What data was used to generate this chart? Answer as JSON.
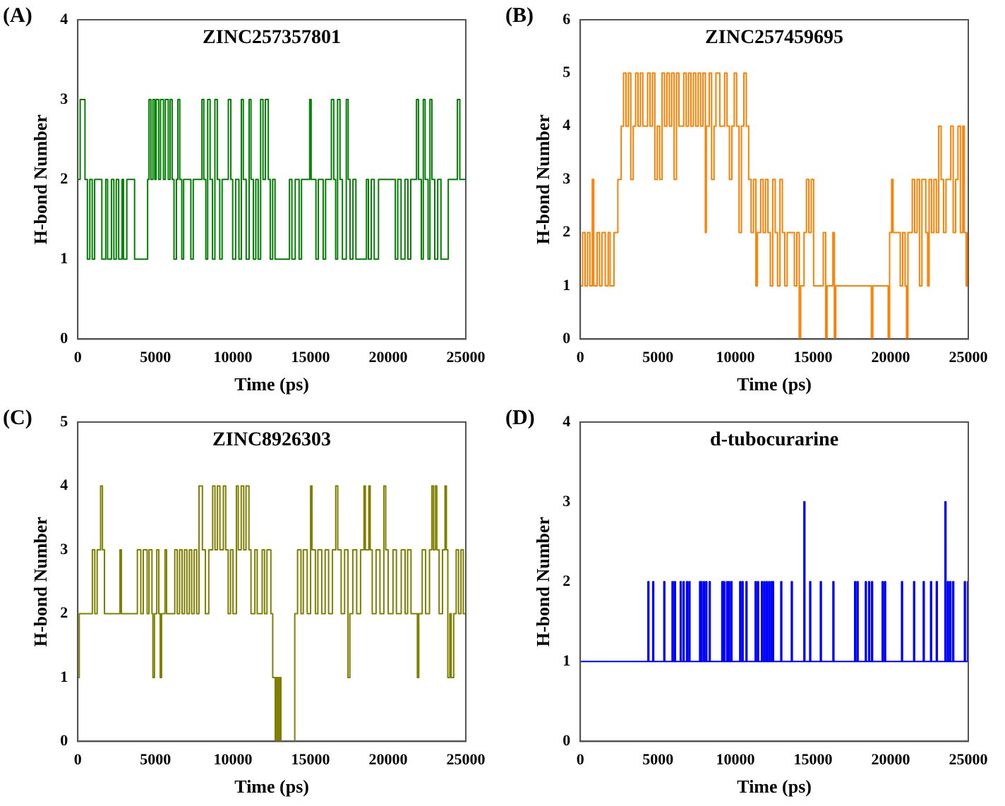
{
  "chart_data": [
    {
      "type": "step",
      "title": "ZINC257357801",
      "annotations": [
        "(A)"
      ],
      "xlabel": "Time (ps)",
      "ylabel": "H-bond Number",
      "xlim": [
        0,
        25000
      ],
      "xticks": [
        0,
        5000,
        10000,
        15000,
        20000,
        25000
      ],
      "ylim": [
        0,
        4
      ],
      "yticks": [
        0,
        1,
        2,
        3,
        4
      ],
      "grid": false,
      "x": [
        0,
        155,
        465,
        620,
        775,
        930,
        1085,
        1550,
        1800,
        1920,
        2170,
        2325,
        2480,
        2635,
        2850,
        2945,
        3160,
        3660,
        4500,
        4590,
        4710,
        4840,
        4960,
        5050,
        5210,
        5330,
        5520,
        5640,
        5830,
        5950,
        6080,
        6200,
        6355,
        6450,
        6570,
        6700,
        6820,
        7285,
        7440,
        8000,
        8120,
        8250,
        8370,
        8525,
        8680,
        8835,
        8990,
        9145,
        9300,
        9700,
        9860,
        9980,
        10170,
        10385,
        10540,
        10665,
        10850,
        11040,
        11160,
        11315,
        11470,
        11625,
        11780,
        11935,
        12090,
        12275,
        12400,
        12555,
        12710,
        13640,
        13795,
        14010,
        14260,
        14415,
        14940,
        15035,
        15345,
        15500,
        15810,
        15965,
        16340,
        16490,
        16615,
        16740,
        16895,
        17050,
        17300,
        17420,
        17545,
        17730,
        17920,
        18600,
        18725,
        18910,
        19100,
        19375,
        20460,
        20615,
        20830,
        21080,
        21270,
        21450,
        21825,
        21950,
        22135,
        22260,
        22380,
        22570,
        22690,
        22815,
        23000,
        23190,
        23400,
        23560,
        23870,
        24460,
        24615,
        25000
      ],
      "series": [
        {
          "color": "#008000",
          "values": [
            2,
            3,
            2,
            1,
            2,
            1,
            2,
            1,
            2,
            1,
            2,
            1,
            2,
            1,
            2,
            1,
            2,
            1,
            2,
            3,
            2,
            3,
            2,
            3,
            2,
            3,
            2,
            3,
            2,
            3,
            2,
            1,
            2,
            3,
            2,
            1,
            2,
            1,
            2,
            3,
            2,
            1,
            3,
            2,
            1,
            3,
            2,
            1,
            2,
            3,
            2,
            1,
            2,
            1,
            3,
            2,
            1,
            3,
            2,
            1,
            2,
            1,
            3,
            2,
            3,
            2,
            1,
            2,
            1,
            2,
            1,
            2,
            1,
            2,
            3,
            2,
            1,
            2,
            1,
            2,
            3,
            2,
            1,
            3,
            2,
            1,
            3,
            2,
            1,
            2,
            1,
            2,
            1,
            2,
            1,
            2,
            1,
            2,
            1,
            2,
            1,
            2,
            3,
            2,
            1,
            3,
            2,
            1,
            3,
            2,
            1,
            2,
            1,
            1,
            2,
            3,
            2,
            2
          ]
        }
      ]
    },
    {
      "type": "step",
      "title": "ZINC257459695",
      "annotations": [
        "(B)"
      ],
      "xlabel": "Time (ps)",
      "ylabel": "H-bond Number",
      "xlim": [
        0,
        25000
      ],
      "xticks": [
        0,
        5000,
        10000,
        15000,
        20000,
        25000
      ],
      "ylim": [
        0,
        6
      ],
      "yticks": [
        0,
        1,
        2,
        3,
        4,
        5,
        6
      ],
      "grid": false,
      "x": [
        0,
        155,
        310,
        465,
        620,
        775,
        870,
        1085,
        1240,
        1395,
        1610,
        1800,
        1920,
        2170,
        2420,
        2635,
        2790,
        2945,
        3100,
        3255,
        3410,
        3565,
        3720,
        3875,
        4030,
        4340,
        4495,
        4650,
        4805,
        4960,
        5115,
        5270,
        5425,
        5580,
        5735,
        5890,
        6045,
        6200,
        6355,
        6665,
        6820,
        6975,
        7130,
        7285,
        7440,
        7595,
        7750,
        7905,
        8060,
        8120,
        8310,
        8460,
        8620,
        8740,
        8990,
        9300,
        9455,
        9610,
        9765,
        9920,
        10075,
        10230,
        10385,
        10540,
        10695,
        10850,
        11005,
        11160,
        11315,
        11410,
        11625,
        11780,
        11935,
        12090,
        12245,
        12400,
        12555,
        12710,
        12865,
        13020,
        13175,
        13330,
        13795,
        13950,
        14105,
        14200,
        14415,
        14570,
        14725,
        14880,
        15035,
        15655,
        15810,
        15900,
        16275,
        16370,
        16460,
        18755,
        18850,
        19840,
        19930,
        20060,
        20150,
        20615,
        20770,
        20925,
        21020,
        21110,
        21390,
        21545,
        21700,
        21855,
        22010,
        22260,
        22380,
        22475,
        22630,
        22785,
        22940,
        23095,
        23250,
        23405,
        23560,
        23870,
        24025,
        24180,
        24335,
        24490,
        24645,
        24740,
        24860,
        24955,
        25000
      ],
      "series": [
        {
          "color": "#ff8000",
          "values": [
            1,
            2,
            1,
            2,
            1,
            3,
            1,
            2,
            1,
            2,
            1,
            2,
            1,
            2,
            3,
            4,
            5,
            4,
            5,
            3,
            4,
            5,
            4,
            5,
            4,
            5,
            4,
            5,
            3,
            4,
            3,
            5,
            4,
            5,
            4,
            5,
            3,
            5,
            4,
            5,
            4,
            5,
            4,
            5,
            4,
            5,
            4,
            5,
            2,
            4,
            5,
            3,
            4,
            5,
            4,
            5,
            4,
            3,
            4,
            5,
            4,
            2,
            4,
            5,
            4,
            3,
            2,
            3,
            1,
            2,
            3,
            2,
            3,
            2,
            1,
            3,
            2,
            1,
            3,
            2,
            1,
            2,
            1,
            2,
            0,
            1,
            2,
            3,
            2,
            3,
            1,
            2,
            0,
            1,
            2,
            0,
            1,
            0,
            1,
            0,
            2,
            3,
            2,
            1,
            2,
            1,
            0,
            2,
            3,
            2,
            3,
            1,
            3,
            2,
            1,
            3,
            2,
            3,
            2,
            4,
            3,
            2,
            3,
            4,
            2,
            3,
            4,
            2,
            4,
            2,
            1,
            2,
            2
          ]
        }
      ]
    },
    {
      "type": "step",
      "title": "ZINC8926303",
      "annotations": [
        "(C)"
      ],
      "xlabel": "Time (ps)",
      "ylabel": "H-bond Number",
      "xlim": [
        0,
        25000
      ],
      "xticks": [
        0,
        5000,
        10000,
        15000,
        20000,
        25000
      ],
      "ylim": [
        0,
        5
      ],
      "yticks": [
        0,
        1,
        2,
        3,
        4,
        5
      ],
      "grid": false,
      "x": [
        0,
        95,
        940,
        1095,
        1250,
        1470,
        1590,
        1720,
        2720,
        2810,
        3840,
        4060,
        4220,
        4470,
        4590,
        4780,
        4840,
        4940,
        5090,
        5220,
        5310,
        5400,
        5620,
        5720,
        6250,
        6410,
        6560,
        6720,
        6875,
        7030,
        7190,
        7340,
        7500,
        7660,
        7810,
        8030,
        8220,
        8440,
        8690,
        8840,
        9000,
        9160,
        9380,
        9530,
        9690,
        9840,
        10000,
        10220,
        10340,
        10530,
        10690,
        10840,
        11030,
        11160,
        11410,
        11560,
        11880,
        12030,
        12190,
        12440,
        12560,
        12720,
        12780,
        12840,
        12910,
        12970,
        13030,
        13090,
        13980,
        14160,
        14380,
        14530,
        14780,
        15000,
        15090,
        15310,
        15470,
        15720,
        15940,
        16160,
        16410,
        16620,
        16750,
        16970,
        17190,
        17410,
        17530,
        17720,
        17970,
        18220,
        18440,
        18530,
        18750,
        18840,
        18970,
        19220,
        19470,
        19720,
        19840,
        20000,
        20310,
        20530,
        20840,
        21090,
        21250,
        21470,
        21880,
        21970,
        22190,
        22410,
        22660,
        22810,
        22910,
        23030,
        23130,
        23280,
        23500,
        23660,
        23750,
        23840,
        23970,
        24060,
        24220,
        24380,
        24530,
        24690,
        24840,
        25000
      ],
      "series": [
        {
          "color": "#808000",
          "values": [
            1,
            2,
            3,
            2,
            3,
            4,
            3,
            2,
            3,
            2,
            3,
            2,
            3,
            2,
            3,
            2,
            1,
            2,
            3,
            2,
            1,
            2,
            3,
            2,
            3,
            2,
            3,
            2,
            3,
            2,
            3,
            2,
            3,
            2,
            4,
            3,
            2,
            3,
            4,
            3,
            4,
            3,
            4,
            3,
            2,
            3,
            2,
            4,
            3,
            4,
            3,
            4,
            3,
            2,
            3,
            2,
            3,
            2,
            3,
            2,
            1,
            0,
            1,
            0,
            1,
            0,
            1,
            0,
            2,
            3,
            2,
            3,
            2,
            4,
            3,
            2,
            3,
            2,
            3,
            2,
            3,
            4,
            3,
            2,
            3,
            1,
            2,
            3,
            2,
            3,
            4,
            3,
            4,
            3,
            2,
            3,
            2,
            4,
            3,
            2,
            3,
            2,
            3,
            2,
            3,
            2,
            1,
            2,
            3,
            2,
            3,
            4,
            3,
            4,
            3,
            2,
            3,
            4,
            3,
            1,
            2,
            1,
            2,
            3,
            2,
            3,
            2,
            2
          ]
        }
      ]
    },
    {
      "type": "step",
      "title": "d-tubocurarine",
      "annotations": [
        "(D)"
      ],
      "xlabel": "Time (ps)",
      "ylabel": "H-bond Number",
      "xlim": [
        0,
        25000
      ],
      "xticks": [
        0,
        5000,
        10000,
        15000,
        20000,
        25000
      ],
      "ylim": [
        0,
        4
      ],
      "yticks": [
        0,
        1,
        2,
        3,
        4
      ],
      "grid": false,
      "x": [
        0,
        4360,
        4420,
        4670,
        4730,
        5385,
        5445,
        5915,
        5975,
        6070,
        6130,
        6445,
        6505,
        6630,
        6690,
        6850,
        6910,
        7005,
        7065,
        7690,
        7730,
        7780,
        7840,
        7940,
        8000,
        8095,
        8155,
        8310,
        8370,
        9120,
        9180,
        9245,
        9305,
        9430,
        9490,
        9555,
        9615,
        9710,
        9770,
        10275,
        10335,
        10430,
        10490,
        10680,
        10740,
        11270,
        11330,
        11425,
        11485,
        11675,
        11735,
        11830,
        11890,
        11985,
        12045,
        12140,
        12200,
        12295,
        12340,
        12390,
        12450,
        12920,
        12980,
        13600,
        13660,
        14410,
        14470,
        14785,
        14845,
        15470,
        15530,
        16280,
        16340,
        17680,
        17740,
        17840,
        17900,
        18370,
        18430,
        18585,
        18645,
        18770,
        18830,
        19455,
        19515,
        19610,
        19670,
        20700,
        20760,
        21480,
        21540,
        22100,
        22160,
        22570,
        22630,
        22940,
        23000,
        23500,
        23560,
        23660,
        23720,
        23815,
        23875,
        24000,
        24060,
        24750,
        24810,
        24950,
        25000
      ],
      "series": [
        {
          "color": "#0000ff",
          "values": [
            1,
            2,
            1,
            2,
            1,
            2,
            1,
            2,
            1,
            2,
            1,
            2,
            1,
            2,
            1,
            2,
            1,
            2,
            1,
            2,
            1,
            2,
            1,
            2,
            1,
            2,
            1,
            2,
            1,
            2,
            1,
            2,
            1,
            2,
            1,
            2,
            1,
            2,
            1,
            2,
            1,
            2,
            1,
            2,
            1,
            2,
            1,
            2,
            1,
            2,
            1,
            2,
            1,
            2,
            1,
            2,
            1,
            2,
            1,
            2,
            1,
            2,
            1,
            2,
            1,
            3,
            1,
            2,
            1,
            2,
            1,
            2,
            1,
            2,
            1,
            2,
            1,
            2,
            1,
            2,
            1,
            2,
            1,
            2,
            1,
            2,
            1,
            2,
            1,
            2,
            1,
            2,
            1,
            2,
            1,
            2,
            1,
            3,
            1,
            2,
            1,
            2,
            1,
            2,
            1,
            2,
            1,
            2,
            2
          ]
        }
      ]
    }
  ]
}
